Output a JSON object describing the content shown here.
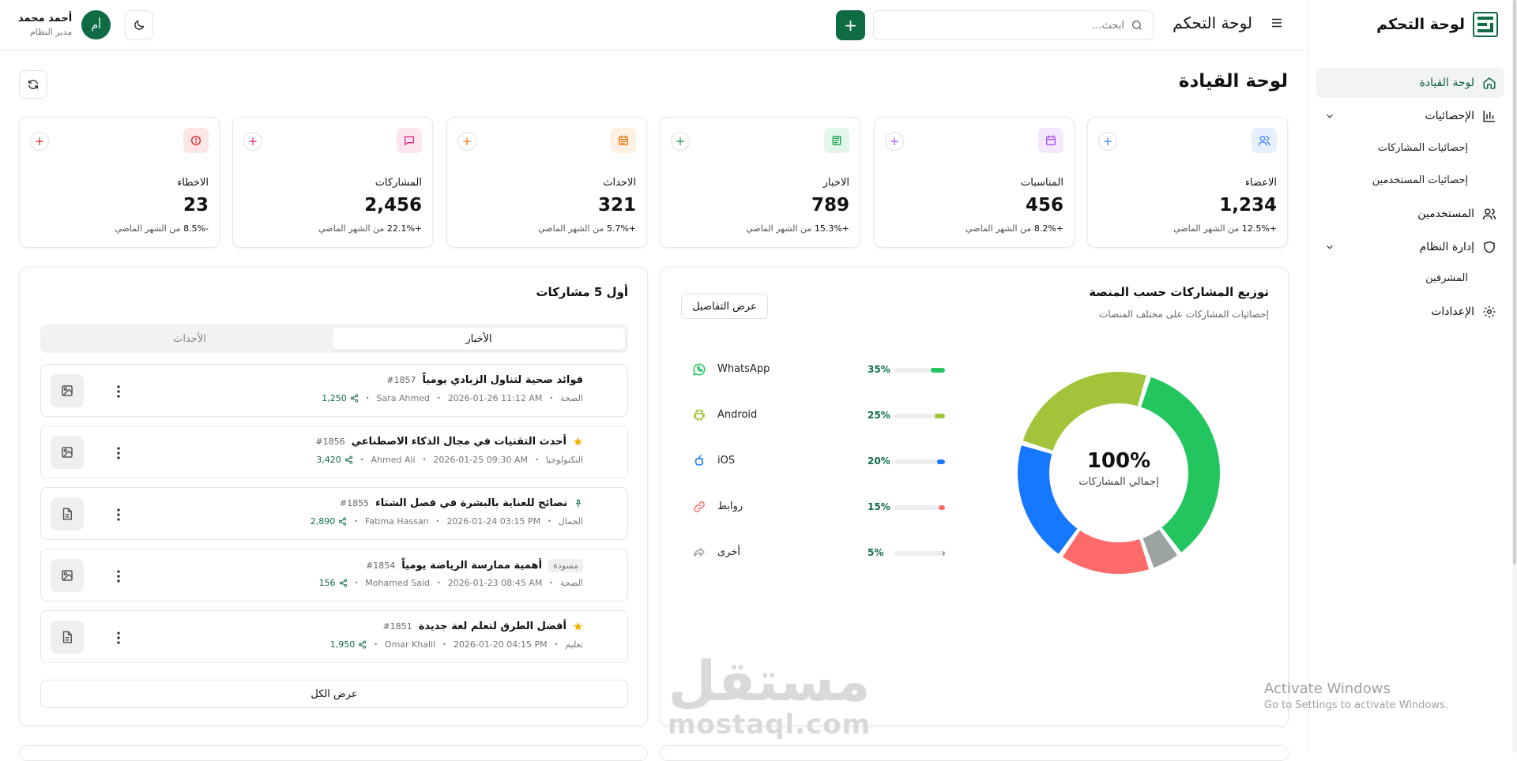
{
  "sidebar": {
    "brand": "لوحة التحكم",
    "items": [
      {
        "label": "لوحة القيادة",
        "active": true
      },
      {
        "label": "الإحصائيات"
      },
      {
        "label": "إحصائيات المشاركات"
      },
      {
        "label": "إحصائيات المستخدمين"
      },
      {
        "label": "المستخدمين"
      },
      {
        "label": "إدارة النظام"
      },
      {
        "label": "المشرفين"
      },
      {
        "label": "الإعدادات"
      }
    ]
  },
  "topbar": {
    "title": "لوحة التحكم",
    "search_placeholder": "ابحث...",
    "add_label": "+",
    "user": {
      "initials": "أم",
      "name": "أحمد محمد",
      "role": "مدير النظام"
    }
  },
  "page": {
    "title": "لوحة القيادة"
  },
  "stats": [
    {
      "label": "الاعضاء",
      "value": "1,234",
      "change": "+12.5%",
      "suffix": "من الشهر الماضي",
      "color": "#3b82f6",
      "bg": "#e6f0fd",
      "icon": "users-icon"
    },
    {
      "label": "المناسبات",
      "value": "456",
      "change": "+8.2%",
      "suffix": "من الشهر الماضي",
      "color": "#a855f7",
      "bg": "#f3e8fd",
      "icon": "calendar-icon"
    },
    {
      "label": "الاخبار",
      "value": "789",
      "change": "+15.3%",
      "suffix": "من الشهر الماضي",
      "color": "#16a34a",
      "bg": "#e3f6ea",
      "icon": "newspaper-icon"
    },
    {
      "label": "الاحداث",
      "value": "321",
      "change": "+5.7%",
      "suffix": "من الشهر الماضي",
      "color": "#ea7a1a",
      "bg": "#fdf0e2",
      "icon": "event-calendar-icon"
    },
    {
      "label": "المشاركات",
      "value": "2,456",
      "change": "+22.1%",
      "suffix": "من الشهر الماضي",
      "color": "#db2777",
      "bg": "#fde6f0",
      "icon": "message-icon"
    },
    {
      "label": "الاخطاء",
      "value": "23",
      "change": "-8.5%",
      "suffix": "من الشهر الماضي",
      "color": "#dc2626",
      "bg": "#fde6e6",
      "icon": "alert-icon"
    }
  ],
  "posts_panel": {
    "title": "أول 5 مشاركات",
    "tabs": [
      "الأخبار",
      "الأحداث"
    ],
    "active_tab": 0,
    "view_all": "عرض الكل",
    "posts": [
      {
        "num": "#1857",
        "title": "فوائد صحية لتناول الزبادي يومياً",
        "category": "الصحة",
        "date": "2026-01-26 11:12 AM",
        "author": "Sara Ahmed",
        "shares": "1,250",
        "thumb": "image",
        "badge": ""
      },
      {
        "num": "#1856",
        "title": "أحدث التقنيات في مجال الذكاء الاصطناعي",
        "category": "التكنولوجيا",
        "date": "2026-01-25 09:30 AM",
        "author": "Ahmed Ali",
        "shares": "3,420",
        "thumb": "image",
        "badge": "star"
      },
      {
        "num": "#1855",
        "title": "نصائح للعناية بالبشرة في فصل الشتاء",
        "category": "الجمال",
        "date": "2026-01-24 03:15 PM",
        "author": "Fatima Hassan",
        "shares": "2,890",
        "thumb": "doc",
        "badge": "pin"
      },
      {
        "num": "#1854",
        "title": "أهمية ممارسة الرياضة يومياً",
        "category": "الصحة",
        "date": "2026-01-23 08:45 AM",
        "author": "Mohamed Said",
        "shares": "156",
        "thumb": "image",
        "badge": "draft",
        "draft_label": "مسودة"
      },
      {
        "num": "#1851",
        "title": "أفضل الطرق لتعلم لغة جديدة",
        "category": "تعليم",
        "date": "2026-01-20 04:15 PM",
        "author": "Omar Khalil",
        "shares": "1,950",
        "thumb": "doc",
        "badge": "star"
      }
    ]
  },
  "dist_panel": {
    "title": "توزيع المشاركات حسب المنصة",
    "subtitle": "إحصائيات المشاركات على مختلف المنصات",
    "details_button": "عرض التفاصيل",
    "center_value": "100%",
    "center_label": "إجمالي المشاركات"
  },
  "chart_data": {
    "type": "pie",
    "variant": "donut",
    "categories": [
      "WhatsApp",
      "Android",
      "iOS",
      "روابط",
      "أخرى"
    ],
    "values": [
      35,
      25,
      20,
      15,
      5
    ],
    "labels": [
      "35%",
      "25%",
      "20%",
      "15%",
      "5%"
    ],
    "colors": [
      "#22c55e",
      "#a3c43a",
      "#1677ff",
      "#ff6b6b",
      "#9ca3a3"
    ],
    "icons": [
      "whatsapp-icon",
      "android-icon",
      "apple-icon",
      "link-icon",
      "share-icon"
    ]
  },
  "watermark": {
    "ar": "مستقل",
    "en": "mostaql.com"
  },
  "activate": {
    "line1": "Activate Windows",
    "line2": "Go to Settings to activate Windows."
  }
}
